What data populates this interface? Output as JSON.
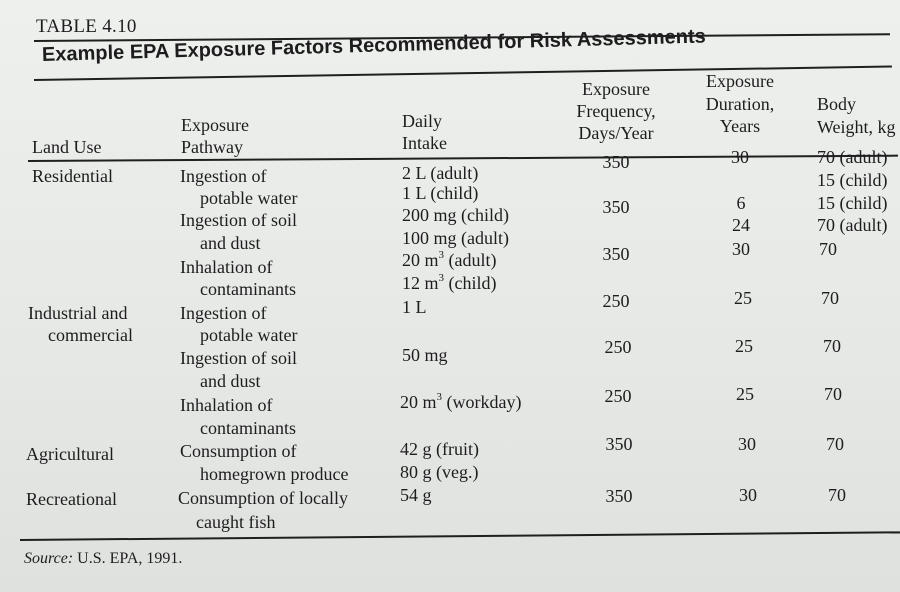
{
  "table_number": "TABLE 4.10",
  "table_title": "Example EPA Exposure Factors Recommended for Risk Assessments",
  "headers": {
    "land_use": "Land Use",
    "exposure_pathway": [
      "Exposure",
      "Pathway"
    ],
    "daily_intake": [
      "Daily",
      "Intake"
    ],
    "exposure_frequency": [
      "Exposure",
      "Frequency,",
      "Days/Year"
    ],
    "exposure_duration": [
      "Exposure",
      "Duration,",
      "Years"
    ],
    "body_weight": [
      "Body",
      "Weight, kg"
    ]
  },
  "land_use": {
    "residential": "Residential",
    "industrial": [
      "Industrial and",
      "commercial"
    ],
    "agricultural": "Agricultural",
    "recreational": "Recreational"
  },
  "pathways": {
    "res_water": [
      "Ingestion of",
      "potable water"
    ],
    "res_soil": [
      "Ingestion of soil",
      "and dust"
    ],
    "res_inhal": [
      "Inhalation of",
      "contaminants"
    ],
    "ind_water": [
      "Ingestion of",
      "potable water"
    ],
    "ind_soil": [
      "Ingestion of soil",
      "and dust"
    ],
    "ind_inhal": [
      "Inhalation of",
      "contaminants"
    ],
    "agri": [
      "Consumption of",
      "homegrown produce"
    ],
    "rec": [
      "Consumption of locally",
      "caught fish"
    ]
  },
  "intake": {
    "res": [
      "2 L (adult)",
      "1 L (child)",
      "200 mg (child)",
      "100 mg (adult)",
      "20 m",
      "(adult)",
      "12 m",
      "(child)"
    ],
    "ind": [
      "1 L",
      "50 mg",
      "20 m",
      "(workday)"
    ],
    "agri": [
      "42 g (fruit)",
      "80 g (veg.)"
    ],
    "rec": "54 g",
    "sup": "3"
  },
  "frequency": [
    "350",
    "350",
    "350",
    "250",
    "250",
    "250",
    "350",
    "350"
  ],
  "duration": [
    "30",
    "6",
    "24",
    "30",
    "25",
    "25",
    "25",
    "30",
    "30"
  ],
  "body_weight": [
    "70 (adult)",
    "15 (child)",
    "15 (child)",
    "70 (adult)",
    "70",
    "70",
    "70",
    "70",
    "70",
    "70"
  ],
  "source": {
    "label": "Source:",
    "text": " U.S. EPA, 1991."
  }
}
